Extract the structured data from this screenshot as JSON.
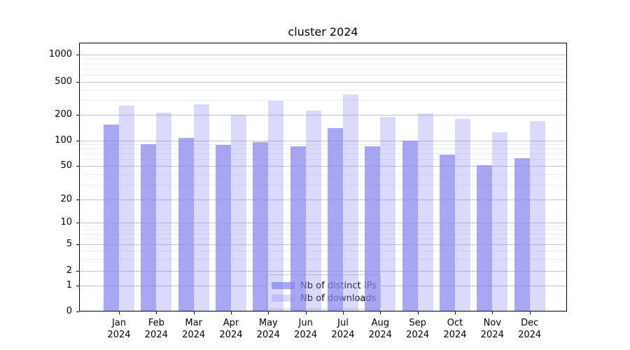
{
  "title": "cluster 2024",
  "chart_data": {
    "type": "bar",
    "title": "cluster 2024",
    "xlabel": "",
    "ylabel": "",
    "yscale": "symlog",
    "ylim": [
      0,
      1200
    ],
    "grid": "both",
    "legend_position": "lower center",
    "categories": [
      "Jan 2024",
      "Feb 2024",
      "Mar 2024",
      "Apr 2024",
      "May 2024",
      "Jun 2024",
      "Jul 2024",
      "Aug 2024",
      "Sep 2024",
      "Oct 2024",
      "Nov 2024",
      "Dec 2024"
    ],
    "x_tick_line1": [
      "Jan",
      "Feb",
      "Mar",
      "Apr",
      "May",
      "Jun",
      "Jul",
      "Aug",
      "Sep",
      "Oct",
      "Nov",
      "Dec"
    ],
    "x_tick_line2": "2024",
    "series": [
      {
        "name": "Nb of distinct IPs",
        "color": "rgba(136,136,240,0.75)",
        "values": [
          153,
          90,
          108,
          88,
          95,
          85,
          140,
          85,
          100,
          68,
          51,
          62
        ]
      },
      {
        "name": "Nb of downloads",
        "color": "rgba(136,136,240,0.32)",
        "values": [
          258,
          213,
          265,
          199,
          293,
          225,
          350,
          189,
          206,
          179,
          125,
          170
        ]
      }
    ],
    "y_major_ticks": [
      0,
      1,
      2,
      5,
      10,
      20,
      50,
      100,
      200,
      500,
      1000
    ],
    "y_tick_labels": [
      "0",
      "1",
      "2",
      "5",
      "10",
      "20",
      "50",
      "100",
      "200",
      "500",
      "1000"
    ],
    "y_minor_ticks": [
      3,
      4,
      6,
      7,
      8,
      9,
      30,
      40,
      60,
      70,
      80,
      90,
      300,
      400,
      600,
      700,
      800,
      900
    ],
    "y_anchor_map": [
      [
        0,
        445
      ],
      [
        1,
        407.7
      ],
      [
        2,
        386.7
      ],
      [
        5,
        349.3
      ],
      [
        10,
        317.7
      ],
      [
        20,
        285
      ],
      [
        50,
        237
      ],
      [
        100,
        200.7
      ],
      [
        200,
        164
      ],
      [
        500,
        116.7
      ],
      [
        1000,
        78.3
      ]
    ]
  },
  "legend": {
    "items": [
      {
        "label": "Nb of distinct IPs",
        "color": "rgba(136,136,240,0.75)"
      },
      {
        "label": "Nb of downloads",
        "color": "rgba(136,136,240,0.32)"
      }
    ]
  }
}
